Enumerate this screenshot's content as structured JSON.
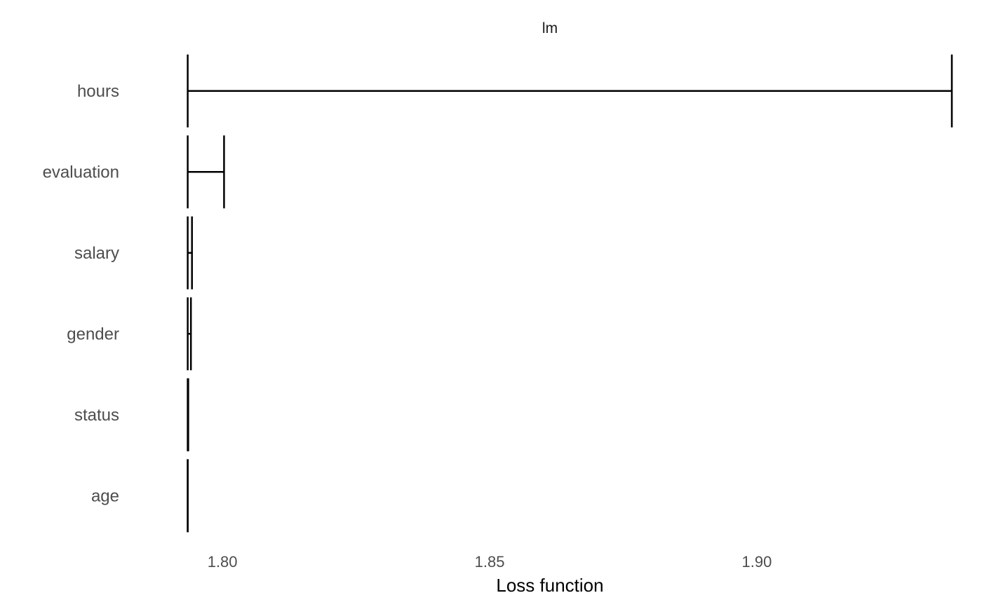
{
  "chart_data": {
    "type": "interval",
    "title": "lm",
    "xlabel": "Loss function",
    "ylabel": "",
    "xlim": [
      1.7862,
      1.9365
    ],
    "baseline": 1.7935,
    "x_ticks": [
      1.8,
      1.85,
      1.9
    ],
    "x_tick_labels": [
      "1.80",
      "1.85",
      "1.90"
    ],
    "grid": false,
    "legend": "none",
    "colors": {
      "bar": "#000000",
      "tick_text": "#4d4d4d",
      "title_text": "#1a1a1a"
    },
    "categories": [
      "hours",
      "evaluation",
      "salary",
      "gender",
      "status",
      "age"
    ],
    "values": [
      1.9365,
      1.8003,
      1.7943,
      1.7941,
      1.7936,
      1.7935
    ]
  }
}
